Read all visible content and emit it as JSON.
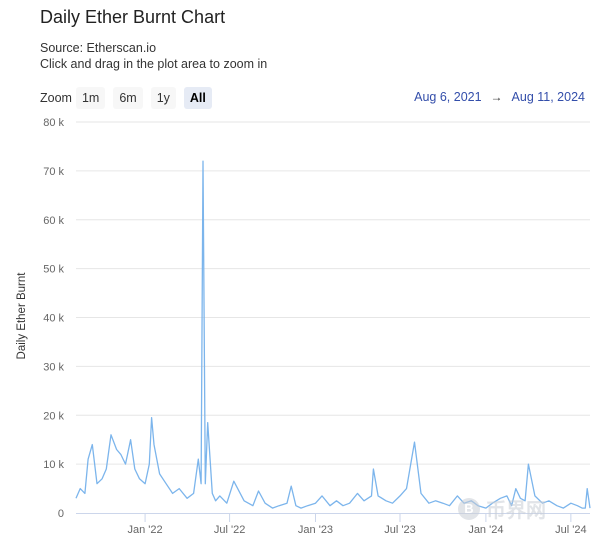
{
  "header": {
    "title": "Daily Ether Burnt Chart",
    "source": "Source: Etherscan.io",
    "instruction": "Click and drag in the plot area to zoom in"
  },
  "zoom": {
    "label": "Zoom",
    "buttons": [
      "1m",
      "6m",
      "1y",
      "All"
    ],
    "active": "All"
  },
  "range": {
    "from": "Aug 6, 2021",
    "arrow": "→",
    "to": "Aug 11, 2024"
  },
  "watermark": {
    "symbol": "B",
    "text": "币界网"
  },
  "colors": {
    "line": "#7cb5ec",
    "grid": "#e6e6e6",
    "axis": "#ccd6eb",
    "range_text": "#334eaa"
  },
  "chart_data": {
    "type": "line",
    "title": "Daily Ether Burnt Chart",
    "ylabel": "Daily Ether Burnt",
    "xlabel": "",
    "xlim": [
      "2021-08-06",
      "2024-08-11"
    ],
    "ylim": [
      0,
      80000
    ],
    "y_ticks": [
      0,
      10000,
      20000,
      30000,
      40000,
      50000,
      60000,
      70000,
      80000
    ],
    "y_tick_labels": [
      "0",
      "10 k",
      "20 k",
      "30 k",
      "40 k",
      "50 k",
      "60 k",
      "70 k",
      "80 k"
    ],
    "x_ticks": [
      "2022-01-01",
      "2022-07-01",
      "2023-01-01",
      "2023-07-01",
      "2024-01-01",
      "2024-07-01"
    ],
    "x_tick_labels": [
      "Jan '22",
      "Jul '22",
      "Jan '23",
      "Jul '23",
      "Jan '24",
      "Jul '24"
    ],
    "grid": true,
    "legend": "none",
    "series": [
      {
        "x": [
          "2021-08-06",
          "2021-08-15",
          "2021-08-25",
          "2021-09-01",
          "2021-09-10",
          "2021-09-20",
          "2021-10-01",
          "2021-10-10",
          "2021-10-20",
          "2021-11-01",
          "2021-11-10",
          "2021-11-20",
          "2021-12-01",
          "2021-12-10",
          "2021-12-20",
          "2022-01-01",
          "2022-01-10",
          "2022-01-15",
          "2022-01-20",
          "2022-02-01",
          "2022-02-15",
          "2022-03-01",
          "2022-03-15",
          "2022-04-01",
          "2022-04-15",
          "2022-04-25",
          "2022-05-01",
          "2022-05-05",
          "2022-05-10",
          "2022-05-15",
          "2022-05-25",
          "2022-06-01",
          "2022-06-10",
          "2022-06-25",
          "2022-07-10",
          "2022-08-01",
          "2022-08-20",
          "2022-09-01",
          "2022-09-15",
          "2022-10-01",
          "2022-10-15",
          "2022-11-01",
          "2022-11-10",
          "2022-11-20",
          "2022-12-01",
          "2022-12-15",
          "2023-01-01",
          "2023-01-15",
          "2023-02-01",
          "2023-02-15",
          "2023-03-01",
          "2023-03-15",
          "2023-04-01",
          "2023-04-15",
          "2023-05-01",
          "2023-05-05",
          "2023-05-15",
          "2023-06-01",
          "2023-06-15",
          "2023-07-01",
          "2023-07-15",
          "2023-08-01",
          "2023-08-15",
          "2023-09-01",
          "2023-09-15",
          "2023-10-01",
          "2023-10-15",
          "2023-11-01",
          "2023-11-15",
          "2023-12-01",
          "2023-12-15",
          "2024-01-01",
          "2024-01-15",
          "2024-02-01",
          "2024-02-15",
          "2024-02-25",
          "2024-03-05",
          "2024-03-15",
          "2024-03-25",
          "2024-04-01",
          "2024-04-15",
          "2024-05-01",
          "2024-05-15",
          "2024-06-01",
          "2024-06-15",
          "2024-07-01",
          "2024-07-15",
          "2024-07-25",
          "2024-08-01",
          "2024-08-05",
          "2024-08-11"
        ],
        "values": [
          3000,
          5000,
          4000,
          11000,
          14000,
          6000,
          7000,
          9000,
          16000,
          13000,
          12000,
          10000,
          15000,
          9000,
          7000,
          6000,
          10000,
          19500,
          14000,
          8000,
          6000,
          4000,
          5000,
          3000,
          4000,
          11000,
          6000,
          72000,
          6000,
          18500,
          4000,
          2500,
          3500,
          2000,
          6500,
          2500,
          1500,
          4500,
          2000,
          1000,
          1500,
          2000,
          5500,
          1500,
          1000,
          1500,
          2000,
          3500,
          1500,
          2500,
          1500,
          2000,
          4000,
          2500,
          3500,
          9000,
          3500,
          2500,
          2000,
          3500,
          5000,
          14500,
          4000,
          2000,
          2500,
          2000,
          1500,
          3500,
          2000,
          2500,
          1500,
          1000,
          2000,
          3000,
          3500,
          1500,
          5000,
          3000,
          2500,
          10000,
          3500,
          2000,
          2500,
          1500,
          1000,
          2000,
          1500,
          1000,
          1000,
          5000,
          1000
        ]
      }
    ]
  }
}
